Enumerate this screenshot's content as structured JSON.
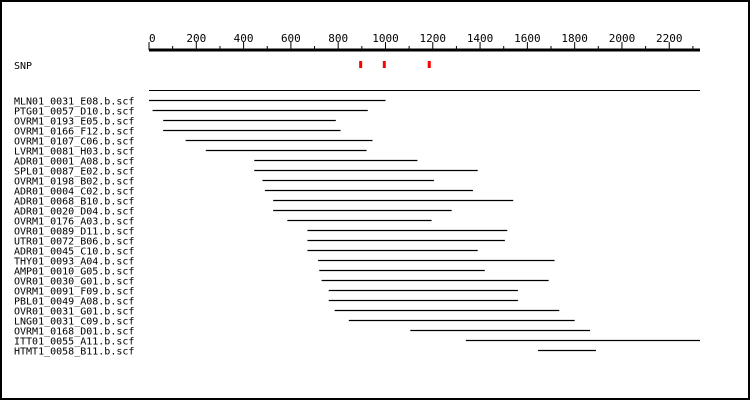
{
  "axis": {
    "min": 0,
    "max": 2330,
    "tick_step": 200,
    "ticks": [
      0,
      200,
      400,
      600,
      800,
      1000,
      1200,
      1400,
      1600,
      1800,
      2000,
      2200
    ]
  },
  "snp": {
    "label": "SNP",
    "positions": [
      895,
      995,
      1185
    ],
    "color": "#ff0000"
  },
  "reads": [
    {
      "name": "MLN01_0031_E08.b.scf",
      "start": 0,
      "end": 1000
    },
    {
      "name": "PTG01_0057_D10.b.scf",
      "start": 15,
      "end": 925
    },
    {
      "name": "OVRM1_0193_E05.b.scf",
      "start": 60,
      "end": 790
    },
    {
      "name": "OVRM1_0166_F12.b.scf",
      "start": 60,
      "end": 810
    },
    {
      "name": "OVRM1_0107_C06.b.scf",
      "start": 155,
      "end": 945
    },
    {
      "name": "LVRM1_0081_H03.b.scf",
      "start": 240,
      "end": 920
    },
    {
      "name": "ADR01_0001_A08.b.scf",
      "start": 445,
      "end": 1135
    },
    {
      "name": "SPL01_0087_E02.b.scf",
      "start": 445,
      "end": 1390
    },
    {
      "name": "OVRM1_0198_B02.b.scf",
      "start": 480,
      "end": 1205
    },
    {
      "name": "ADR01_0004_C02.b.scf",
      "start": 490,
      "end": 1370
    },
    {
      "name": "ADR01_0068_B10.b.scf",
      "start": 525,
      "end": 1540
    },
    {
      "name": "ADR01_0020_D04.b.scf",
      "start": 525,
      "end": 1280
    },
    {
      "name": "OVRM1_0176_A03.b.scf",
      "start": 585,
      "end": 1195
    },
    {
      "name": "OVR01_0089_D11.b.scf",
      "start": 670,
      "end": 1515
    },
    {
      "name": "UTR01_0072_B06.b.scf",
      "start": 670,
      "end": 1505
    },
    {
      "name": "ADR01_0045_C10.b.scf",
      "start": 670,
      "end": 1390
    },
    {
      "name": "THY01_0093_A04.b.scf",
      "start": 715,
      "end": 1715
    },
    {
      "name": "AMP01_0010_G05.b.scf",
      "start": 720,
      "end": 1420
    },
    {
      "name": "OVR01_0030_G01.b.scf",
      "start": 730,
      "end": 1690
    },
    {
      "name": "OVRM1_0091_F09.b.scf",
      "start": 760,
      "end": 1560
    },
    {
      "name": "PBL01_0049_A08.b.scf",
      "start": 760,
      "end": 1560
    },
    {
      "name": "OVR01_0031_G01.b.scf",
      "start": 785,
      "end": 1735
    },
    {
      "name": "LNG01_0031_C09.b.scf",
      "start": 845,
      "end": 1800
    },
    {
      "name": "OVRM1_0168_D01.b.scf",
      "start": 1105,
      "end": 1865
    },
    {
      "name": "ITT01_0055_A11.b.scf",
      "start": 1340,
      "end": 2330
    },
    {
      "name": "HTMT1_0058_B11.b.scf",
      "start": 1645,
      "end": 1890
    }
  ]
}
